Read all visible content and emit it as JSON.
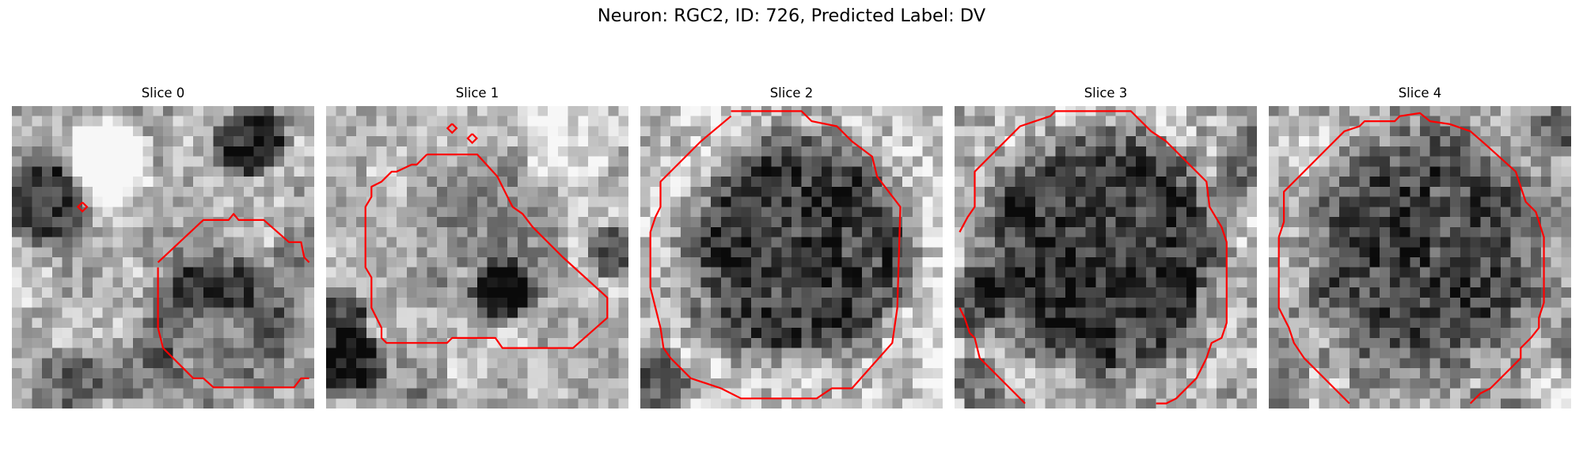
{
  "figure": {
    "title": "Neuron: RGC2, ID: 726, Predicted Label: DV",
    "contour_color": "#ff0000",
    "panels": [
      {
        "title": "Slice 0"
      },
      {
        "title": "Slice 1"
      },
      {
        "title": "Slice 2"
      },
      {
        "title": "Slice 3"
      },
      {
        "title": "Slice 4"
      }
    ]
  }
}
